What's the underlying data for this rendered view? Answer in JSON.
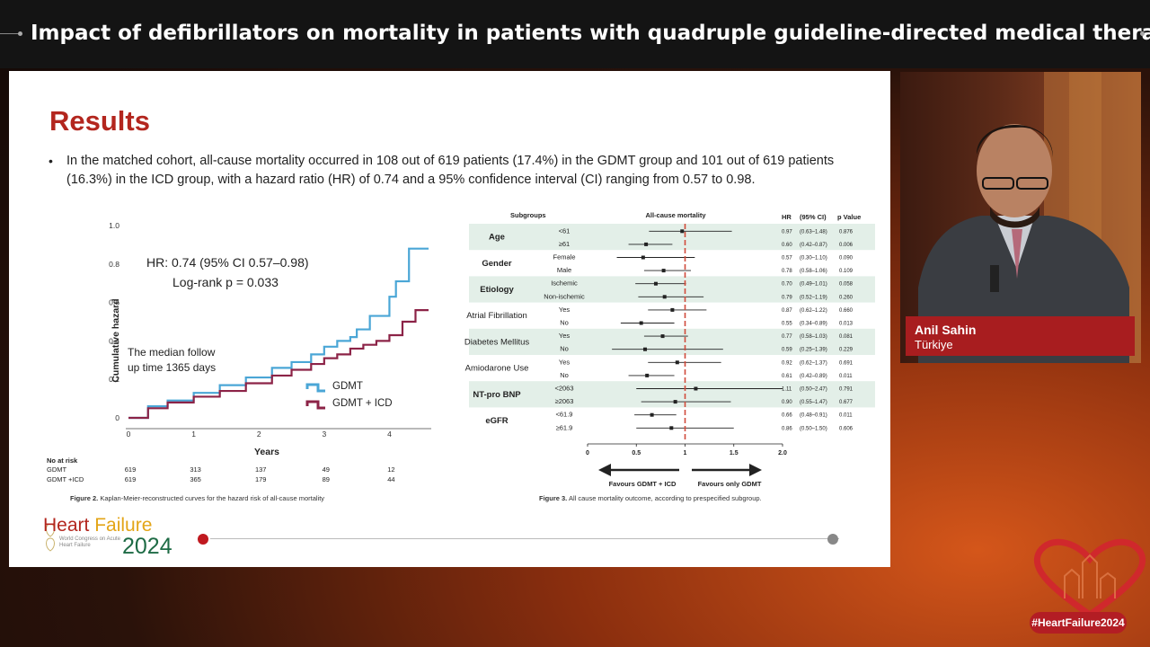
{
  "header": {
    "title": "Impact of defibrillators on mortality in patients with quadruple guideline-directed medical therapy…"
  },
  "slide": {
    "title": "Results",
    "bullet": "In the matched cohort, all-cause mortality occurred in 108 out of 619 patients (17.4%) in the GDMT group and 101 out of 619 patients (16.3%) in the ICD group, with a hazard ratio (HR) of 0.74 and a 95% confidence interval (CI) ranging from 0.57 to 0.98.",
    "fig2_caption_label": "Figure 2.",
    "fig2_caption": "Kaplan-Meier-reconstructed curves for the hazard risk of all-cause mortality",
    "fig3_caption_label": "Figure 3.",
    "fig3_caption": "All cause mortality outcome, according to prespecified subgroup."
  },
  "km": {
    "ylabel": "Cumulative hazard",
    "xlabel": "Years",
    "yticks": [
      "1.0",
      "0.8",
      "0.6",
      "0.4",
      "0.2",
      "0"
    ],
    "xticks": [
      "0",
      "1",
      "2",
      "3",
      "4"
    ],
    "hr_text": "HR: 0.74 (95% CI 0.57–0.98)",
    "logrank_text": "Log-rank p = 0.033",
    "median_line1": "The median follow",
    "median_line2": "up time 1365 days",
    "legend": [
      {
        "name": "GDMT",
        "color": "#4aa6d6"
      },
      {
        "name": "GDMT + ICD",
        "color": "#8c2347"
      }
    ],
    "risk_title": "No at risk",
    "risk_rows": [
      {
        "label": "GDMT",
        "values": [
          "619",
          "313",
          "137",
          "49",
          "12"
        ]
      },
      {
        "label": "GDMT +ICD",
        "values": [
          "619",
          "365",
          "179",
          "89",
          "44"
        ]
      }
    ]
  },
  "forest": {
    "col_subgroups": "Subgroups",
    "col_title": "All-cause mortality",
    "col_hr": "HR",
    "col_ci": "(95% CI)",
    "col_p": "p Value",
    "groups": [
      {
        "name": "Age",
        "shaded": true,
        "rows": [
          {
            "label": "<61",
            "hr": "0.97",
            "ci": "(0.63–1.48)",
            "p": "0.876",
            "est": 0.97,
            "lo": 0.63,
            "hi": 1.48
          },
          {
            "label": "≥61",
            "hr": "0.60",
            "ci": "(0.42–0.87)",
            "p": "0.006",
            "est": 0.6,
            "lo": 0.42,
            "hi": 0.87
          }
        ]
      },
      {
        "name": "Gender",
        "shaded": false,
        "rows": [
          {
            "label": "Female",
            "hr": "0.57",
            "ci": "(0.30–1.10)",
            "p": "0.090",
            "est": 0.57,
            "lo": 0.3,
            "hi": 1.1
          },
          {
            "label": "Male",
            "hr": "0.78",
            "ci": "(0.58–1.06)",
            "p": "0.109",
            "est": 0.78,
            "lo": 0.58,
            "hi": 1.06
          }
        ]
      },
      {
        "name": "Etiology",
        "shaded": true,
        "rows": [
          {
            "label": "Ischemic",
            "hr": "0.70",
            "ci": "(0.49–1.01)",
            "p": "0.058",
            "est": 0.7,
            "lo": 0.49,
            "hi": 1.01
          },
          {
            "label": "Non-ischemic",
            "hr": "0.79",
            "ci": "(0.52–1.19)",
            "p": "0.260",
            "est": 0.79,
            "lo": 0.52,
            "hi": 1.19
          }
        ]
      },
      {
        "name": "Atrial Fibrillation",
        "shaded": false,
        "rows": [
          {
            "label": "Yes",
            "hr": "0.87",
            "ci": "(0.62–1.22)",
            "p": "0.660",
            "est": 0.87,
            "lo": 0.62,
            "hi": 1.22
          },
          {
            "label": "No",
            "hr": "0.55",
            "ci": "(0.34–0.89)",
            "p": "0.013",
            "est": 0.55,
            "lo": 0.34,
            "hi": 0.89
          }
        ]
      },
      {
        "name": "Diabetes Mellitus",
        "shaded": true,
        "rows": [
          {
            "label": "Yes",
            "hr": "0.77",
            "ci": "(0.58–1.03)",
            "p": "0.081",
            "est": 0.77,
            "lo": 0.58,
            "hi": 1.03
          },
          {
            "label": "No",
            "hr": "0.59",
            "ci": "(0.25–1.39)",
            "p": "0.229",
            "est": 0.59,
            "lo": 0.25,
            "hi": 1.39
          }
        ]
      },
      {
        "name": "Amiodarone Use",
        "shaded": false,
        "rows": [
          {
            "label": "Yes",
            "hr": "0.92",
            "ci": "(0.62–1.37)",
            "p": "0.691",
            "est": 0.92,
            "lo": 0.62,
            "hi": 1.37
          },
          {
            "label": "No",
            "hr": "0.61",
            "ci": "(0.42–0.89)",
            "p": "0.011",
            "est": 0.61,
            "lo": 0.42,
            "hi": 0.89
          }
        ]
      },
      {
        "name": "NT-pro BNP",
        "shaded": true,
        "rows": [
          {
            "label": "<2063",
            "hr": "1.11",
            "ci": "(0.50–2.47)",
            "p": "0.791",
            "est": 1.11,
            "lo": 0.5,
            "hi": 2.47
          },
          {
            "label": "≥2063",
            "hr": "0.90",
            "ci": "(0.55–1.47)",
            "p": "0.677",
            "est": 0.9,
            "lo": 0.55,
            "hi": 1.47
          }
        ]
      },
      {
        "name": "eGFR",
        "shaded": false,
        "rows": [
          {
            "label": "<61.9",
            "hr": "0.66",
            "ci": "(0.48–0.91)",
            "p": "0.011",
            "est": 0.66,
            "lo": 0.48,
            "hi": 0.91
          },
          {
            "label": "≥61.9",
            "hr": "0.86",
            "ci": "(0.50–1.50)",
            "p": "0.606",
            "est": 0.86,
            "lo": 0.5,
            "hi": 1.5
          }
        ]
      }
    ],
    "xticks": [
      "0",
      "0.5",
      "1",
      "1.5",
      "2.0"
    ],
    "favours_left": "Favours  GDMT + ICD",
    "favours_right": "Favours only GDMT"
  },
  "chart_data": [
    {
      "type": "line",
      "title": "",
      "xlabel": "Years",
      "ylabel": "Cumulative hazard",
      "xlim": [
        0,
        4.6
      ],
      "ylim": [
        0,
        1.0
      ],
      "series": [
        {
          "name": "GDMT",
          "color": "#4aa6d6",
          "x": [
            0,
            0.3,
            0.6,
            1.0,
            1.4,
            1.8,
            2.2,
            2.5,
            2.8,
            3.0,
            3.2,
            3.4,
            3.5,
            3.7,
            3.9,
            4.0,
            4.1,
            4.3,
            4.6
          ],
          "y": [
            0,
            0.06,
            0.09,
            0.13,
            0.17,
            0.21,
            0.26,
            0.29,
            0.33,
            0.37,
            0.4,
            0.42,
            0.46,
            0.53,
            0.53,
            0.63,
            0.71,
            0.88,
            0.88
          ]
        },
        {
          "name": "GDMT + ICD",
          "color": "#8c2347",
          "x": [
            0,
            0.3,
            0.6,
            1.0,
            1.4,
            1.8,
            2.2,
            2.5,
            2.8,
            3.0,
            3.2,
            3.4,
            3.6,
            3.8,
            4.0,
            4.2,
            4.4,
            4.6
          ],
          "y": [
            0,
            0.05,
            0.08,
            0.11,
            0.14,
            0.18,
            0.22,
            0.25,
            0.28,
            0.31,
            0.33,
            0.36,
            0.38,
            0.4,
            0.43,
            0.5,
            0.56,
            0.56
          ]
        }
      ]
    },
    {
      "type": "scatter",
      "title": "All-cause mortality",
      "xlabel": "",
      "xlim": [
        0,
        2.0
      ],
      "reference_line": 1,
      "categories": [
        "Age <61",
        "Age ≥61",
        "Female",
        "Male",
        "Ischemic",
        "Non-ischemic",
        "AF Yes",
        "AF No",
        "DM Yes",
        "DM No",
        "Amiodarone Yes",
        "Amiodarone No",
        "NT-pro BNP <2063",
        "NT-pro BNP ≥2063",
        "eGFR <61.9",
        "eGFR ≥61.9"
      ],
      "values": [
        0.97,
        0.6,
        0.57,
        0.78,
        0.7,
        0.79,
        0.87,
        0.55,
        0.77,
        0.59,
        0.92,
        0.61,
        1.11,
        0.9,
        0.66,
        0.86
      ]
    }
  ]
}
